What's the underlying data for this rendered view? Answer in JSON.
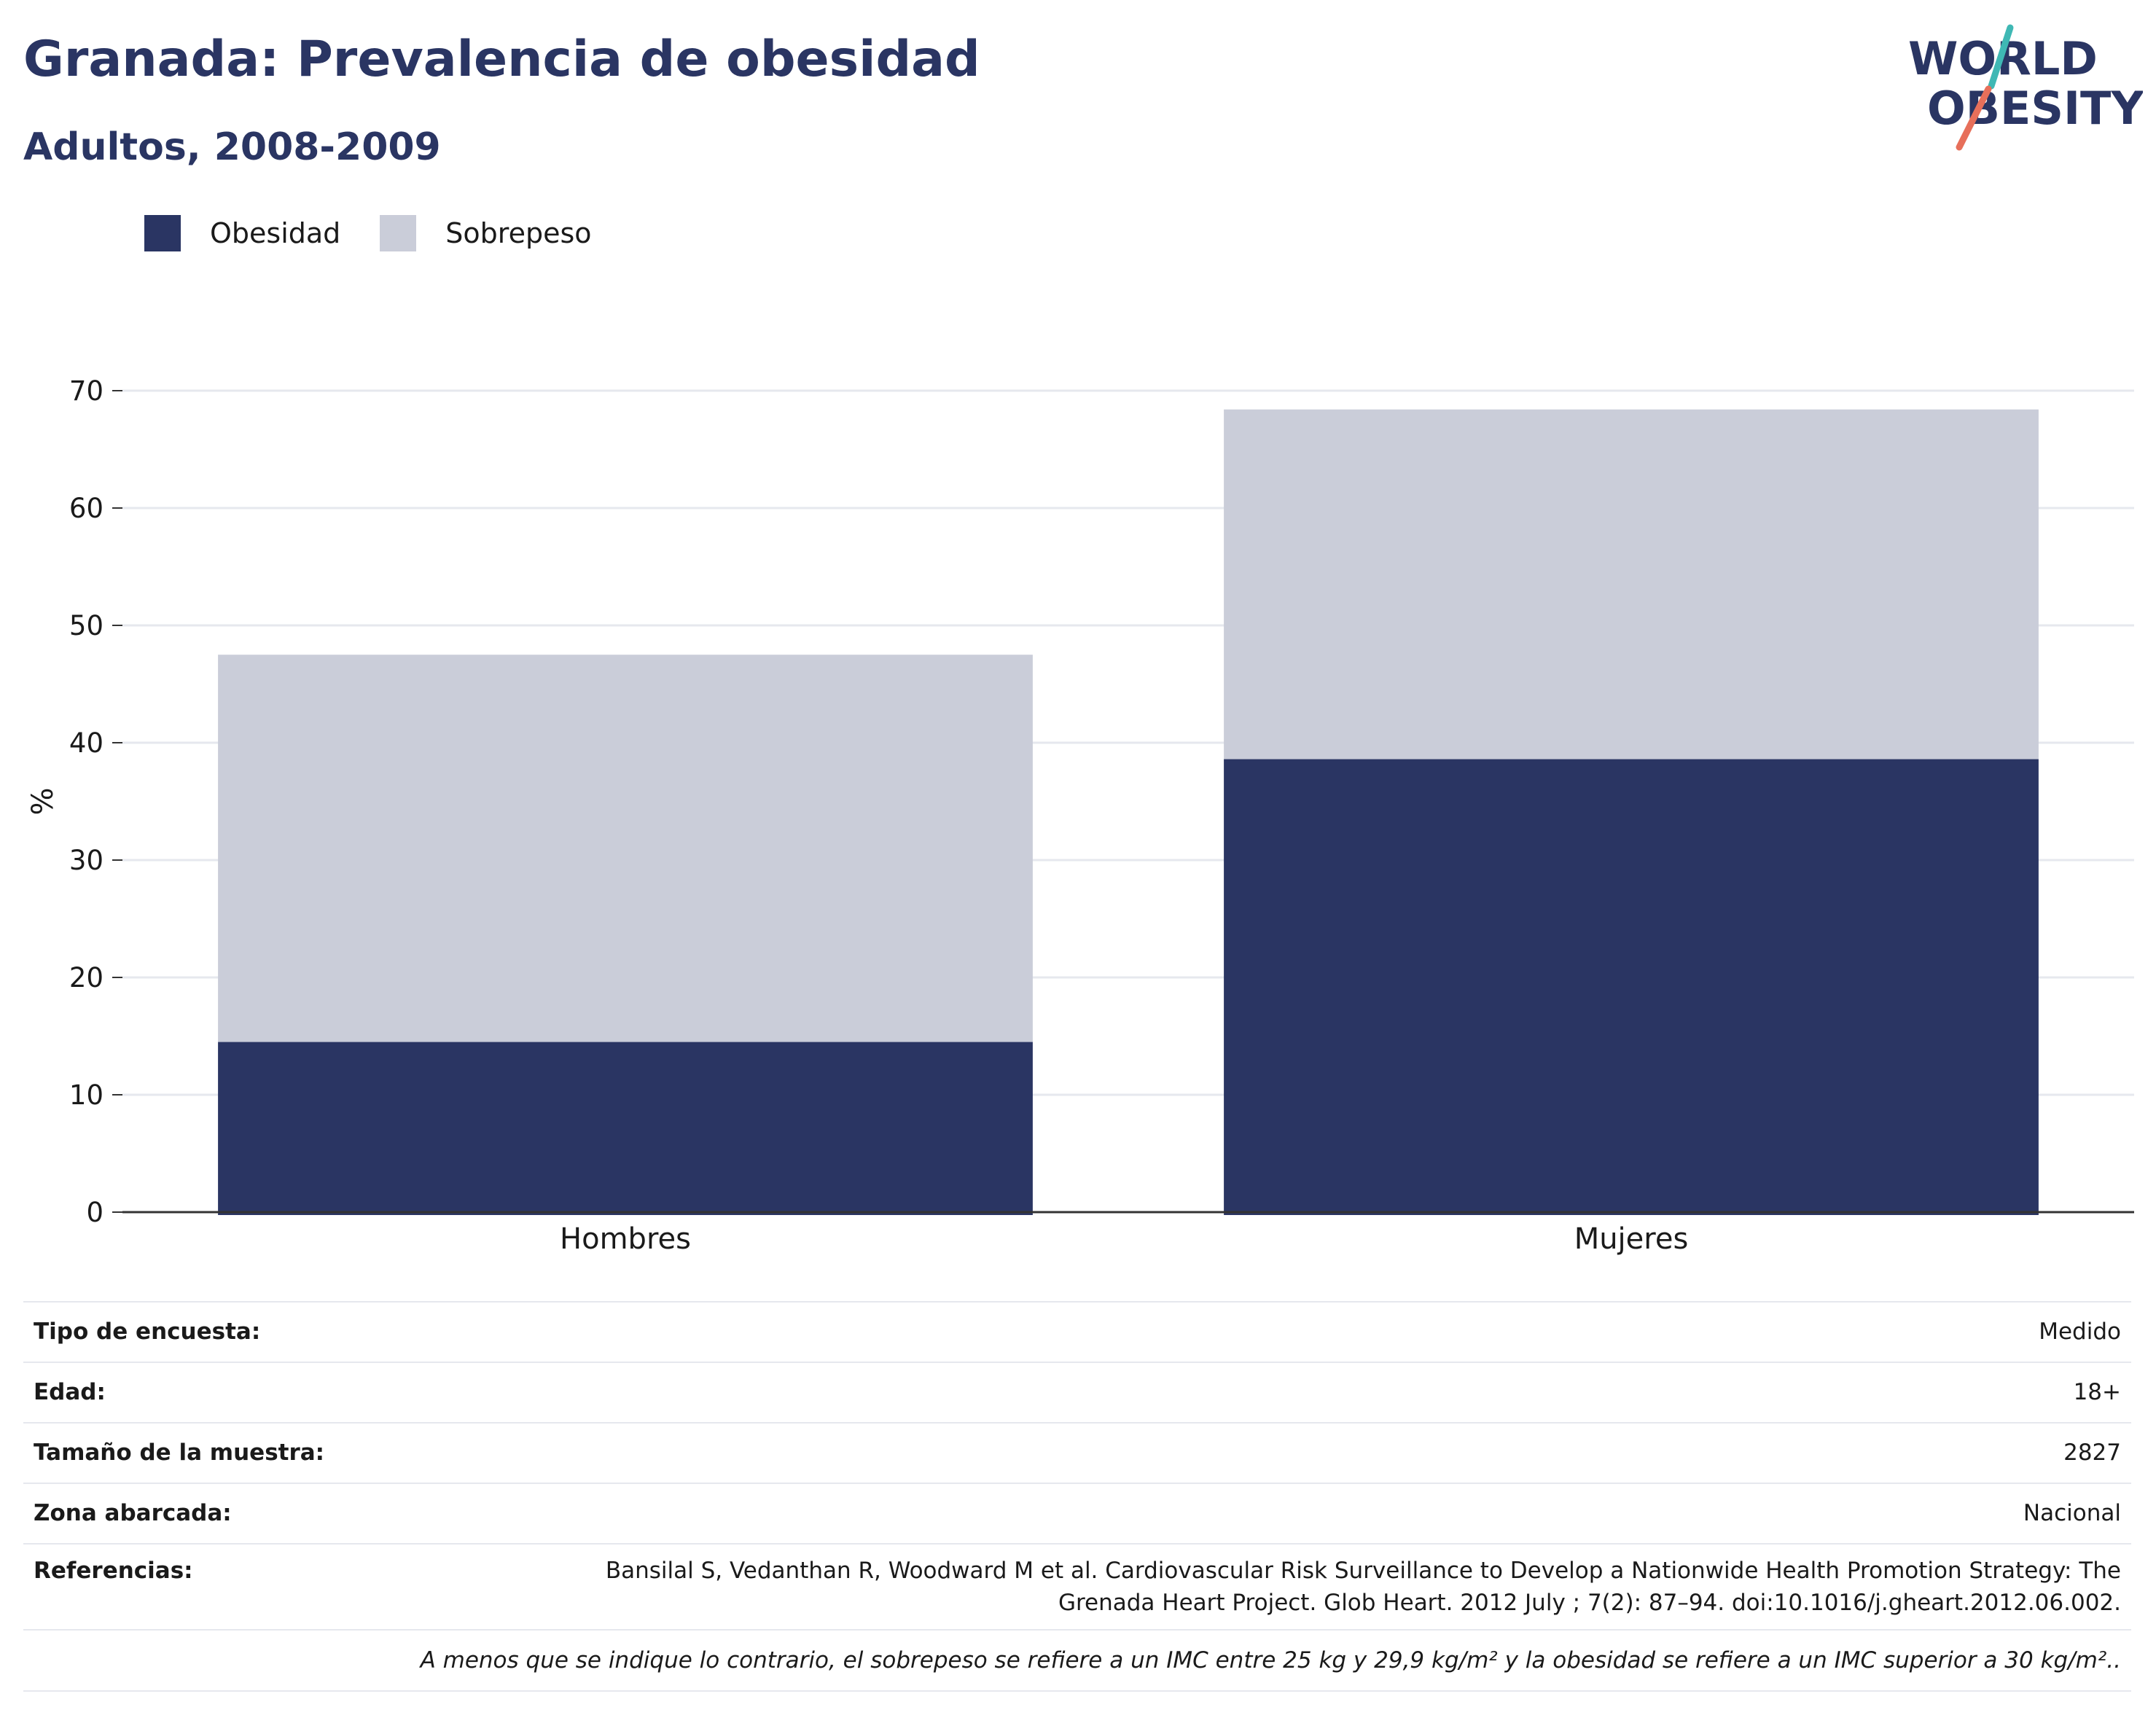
{
  "header": {
    "title": "Granada: Prevalencia de obesidad",
    "subtitle": "Adultos, 2008-2009"
  },
  "logo": {
    "line1": "WORLD",
    "line2": "OBESITY"
  },
  "colors": {
    "obesidad": "#2a3563",
    "sobrepeso": "#cacdd9",
    "grid": "#e6e8ee",
    "axis": "#333333",
    "logo_teal": "#3fb8b4",
    "logo_coral": "#e76f5a"
  },
  "chart_data": {
    "type": "bar",
    "stacked": true,
    "title": "Granada: Prevalencia de obesidad",
    "subtitle": "Adultos, 2008-2009",
    "categories": [
      "Hombres",
      "Mujeres"
    ],
    "series": [
      {
        "name": "Obesidad",
        "values": [
          14.5,
          38.6
        ]
      },
      {
        "name": "Sobrepeso",
        "values": [
          33.0,
          29.8
        ]
      }
    ],
    "ylabel": "%",
    "xlabel": "",
    "ylim": [
      0,
      70
    ],
    "yticks": [
      0,
      10,
      20,
      30,
      40,
      50,
      60,
      70
    ],
    "grid": true,
    "legend_position": "top-left"
  },
  "info": {
    "rows": [
      {
        "key": "Tipo de encuesta:",
        "value": "Medido"
      },
      {
        "key": "Edad:",
        "value": "18+"
      },
      {
        "key": "Tamaño de la muestra:",
        "value": "2827"
      },
      {
        "key": "Zona abarcada:",
        "value": "Nacional"
      }
    ],
    "reference": {
      "key": "Referencias:",
      "line1": "Bansilal S, Vedanthan R, Woodward M et al. Cardiovascular Risk Surveillance to Develop a Nationwide Health Promotion Strategy: The",
      "line2": "Grenada Heart Project. Glob Heart. 2012 July ; 7(2): 87–94. doi:10.1016/j.gheart.2012.06.002."
    },
    "note": "A menos que se indique lo contrario, el sobrepeso se refiere a un IMC entre 25 kg y 29,9 kg/m² y la obesidad se refiere a un IMC superior a 30 kg/m².."
  }
}
